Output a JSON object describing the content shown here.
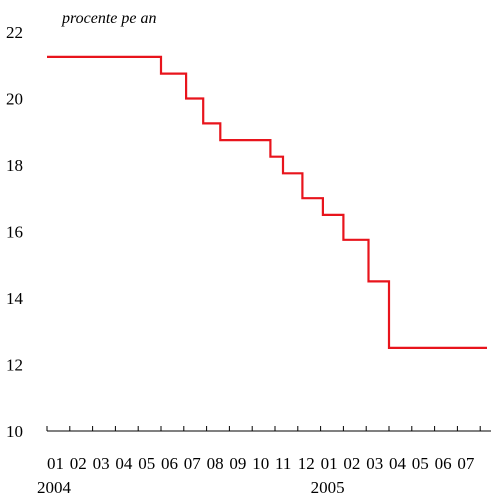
{
  "chart_data": {
    "type": "line",
    "step": true,
    "ylabel": "procente pe an",
    "ylim": [
      10,
      22
    ],
    "yticks": [
      10,
      12,
      14,
      16,
      18,
      20,
      22
    ],
    "xlim": [
      0,
      19.3
    ],
    "categories": [
      "01",
      "02",
      "03",
      "04",
      "05",
      "06",
      "07",
      "08",
      "09",
      "10",
      "11",
      "12",
      "01",
      "02",
      "03",
      "04",
      "05",
      "06",
      "07"
    ],
    "year_labels": [
      {
        "label": "2004",
        "index": 0
      },
      {
        "label": "2005",
        "index": 12
      }
    ],
    "grid": false,
    "series": [
      {
        "color": "#e8141c",
        "points": [
          {
            "x": 0.0,
            "y": 21.25
          },
          {
            "x": 5.0,
            "y": 21.25
          },
          {
            "x": 5.0,
            "y": 20.75
          },
          {
            "x": 6.1,
            "y": 20.75
          },
          {
            "x": 6.1,
            "y": 20.0
          },
          {
            "x": 6.85,
            "y": 20.0
          },
          {
            "x": 6.85,
            "y": 19.25
          },
          {
            "x": 7.6,
            "y": 19.25
          },
          {
            "x": 7.6,
            "y": 18.75
          },
          {
            "x": 9.8,
            "y": 18.75
          },
          {
            "x": 9.8,
            "y": 18.25
          },
          {
            "x": 10.35,
            "y": 18.25
          },
          {
            "x": 10.35,
            "y": 17.75
          },
          {
            "x": 11.2,
            "y": 17.75
          },
          {
            "x": 11.2,
            "y": 17.0
          },
          {
            "x": 12.1,
            "y": 17.0
          },
          {
            "x": 12.1,
            "y": 16.5
          },
          {
            "x": 13.0,
            "y": 16.5
          },
          {
            "x": 13.0,
            "y": 15.75
          },
          {
            "x": 14.1,
            "y": 15.75
          },
          {
            "x": 14.1,
            "y": 14.5
          },
          {
            "x": 15.0,
            "y": 14.5
          },
          {
            "x": 15.0,
            "y": 12.5
          },
          {
            "x": 19.3,
            "y": 12.5
          }
        ]
      }
    ]
  }
}
